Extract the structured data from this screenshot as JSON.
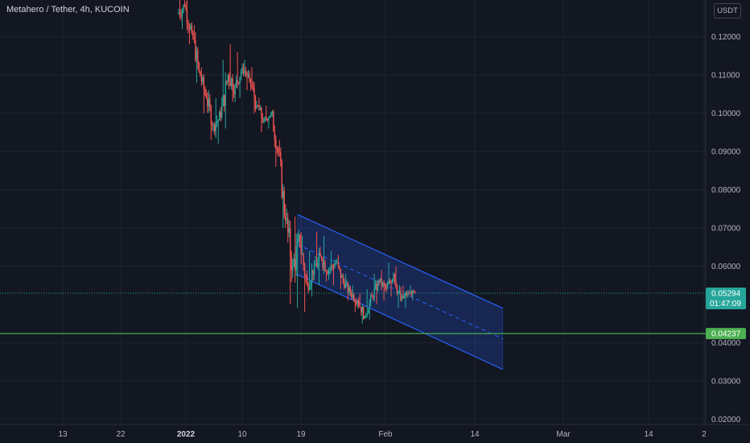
{
  "header": {
    "title": "Metahero / Tether, 4h, KUCOIN",
    "unit": "USDT"
  },
  "colors": {
    "background": "#131722",
    "grid": "#1f2330",
    "up_candle": "#26a69a",
    "down_candle": "#ef5350",
    "channel_fill": "#2962ff",
    "channel_line": "#2962ff",
    "support_line": "#4caf50",
    "current_price": "#26a69a"
  },
  "chart_data": {
    "type": "candlestick",
    "symbol": "Metahero / Tether",
    "interval": "4h",
    "exchange": "KUCOIN",
    "y_axis": {
      "ticks": [
        "0.12000",
        "0.11000",
        "0.10000",
        "0.09000",
        "0.08000",
        "0.07000",
        "0.06000",
        "0.04000",
        "0.03000",
        "0.02000"
      ],
      "range": [
        0.0186,
        0.1296
      ]
    },
    "x_axis": {
      "ticks": [
        {
          "label": "13",
          "bold": false
        },
        {
          "label": "22",
          "bold": false
        },
        {
          "label": "2022",
          "bold": true
        },
        {
          "label": "10",
          "bold": false
        },
        {
          "label": "19",
          "bold": false
        },
        {
          "label": "Feb",
          "bold": false
        },
        {
          "label": "14",
          "bold": false
        },
        {
          "label": "Mar",
          "bold": false
        },
        {
          "label": "14",
          "bold": false
        },
        {
          "label": "2",
          "bold": false
        }
      ]
    },
    "price_series": [
      {
        "d": 0,
        "o": 0.126,
        "h": 0.134,
        "l": 0.122,
        "c": 0.128
      },
      {
        "d": 1,
        "o": 0.128,
        "h": 0.131,
        "l": 0.118,
        "c": 0.121
      },
      {
        "d": 2,
        "o": 0.121,
        "h": 0.123,
        "l": 0.108,
        "c": 0.111
      },
      {
        "d": 3,
        "o": 0.111,
        "h": 0.112,
        "l": 0.1,
        "c": 0.104
      },
      {
        "d": 4,
        "o": 0.104,
        "h": 0.106,
        "l": 0.093,
        "c": 0.097
      },
      {
        "d": 5,
        "o": 0.097,
        "h": 0.104,
        "l": 0.092,
        "c": 0.099
      },
      {
        "d": 6,
        "o": 0.099,
        "h": 0.114,
        "l": 0.096,
        "c": 0.11
      },
      {
        "d": 7,
        "o": 0.11,
        "h": 0.118,
        "l": 0.103,
        "c": 0.107
      },
      {
        "d": 8,
        "o": 0.107,
        "h": 0.116,
        "l": 0.104,
        "c": 0.112
      },
      {
        "d": 9,
        "o": 0.112,
        "h": 0.114,
        "l": 0.106,
        "c": 0.109
      },
      {
        "d": 10,
        "o": 0.109,
        "h": 0.112,
        "l": 0.1,
        "c": 0.102
      },
      {
        "d": 11,
        "o": 0.102,
        "h": 0.104,
        "l": 0.095,
        "c": 0.098
      },
      {
        "d": 12,
        "o": 0.098,
        "h": 0.102,
        "l": 0.096,
        "c": 0.1
      },
      {
        "d": 13,
        "o": 0.1,
        "h": 0.101,
        "l": 0.086,
        "c": 0.09
      },
      {
        "d": 14,
        "o": 0.09,
        "h": 0.091,
        "l": 0.07,
        "c": 0.072
      },
      {
        "d": 15,
        "o": 0.072,
        "h": 0.074,
        "l": 0.05,
        "c": 0.06
      },
      {
        "d": 16,
        "o": 0.06,
        "h": 0.073,
        "l": 0.049,
        "c": 0.066
      },
      {
        "d": 17,
        "o": 0.066,
        "h": 0.068,
        "l": 0.048,
        "c": 0.055
      },
      {
        "d": 18,
        "o": 0.055,
        "h": 0.064,
        "l": 0.052,
        "c": 0.06
      },
      {
        "d": 19,
        "o": 0.06,
        "h": 0.069,
        "l": 0.055,
        "c": 0.062
      },
      {
        "d": 20,
        "o": 0.062,
        "h": 0.068,
        "l": 0.056,
        "c": 0.059
      },
      {
        "d": 21,
        "o": 0.059,
        "h": 0.064,
        "l": 0.055,
        "c": 0.061
      },
      {
        "d": 22,
        "o": 0.061,
        "h": 0.063,
        "l": 0.054,
        "c": 0.056
      },
      {
        "d": 23,
        "o": 0.056,
        "h": 0.058,
        "l": 0.051,
        "c": 0.053
      },
      {
        "d": 24,
        "o": 0.053,
        "h": 0.055,
        "l": 0.048,
        "c": 0.051
      },
      {
        "d": 25,
        "o": 0.051,
        "h": 0.053,
        "l": 0.045,
        "c": 0.047
      },
      {
        "d": 26,
        "o": 0.047,
        "h": 0.054,
        "l": 0.046,
        "c": 0.052
      },
      {
        "d": 27,
        "o": 0.052,
        "h": 0.058,
        "l": 0.05,
        "c": 0.056
      },
      {
        "d": 28,
        "o": 0.056,
        "h": 0.059,
        "l": 0.051,
        "c": 0.054
      },
      {
        "d": 29,
        "o": 0.054,
        "h": 0.061,
        "l": 0.052,
        "c": 0.058
      },
      {
        "d": 30,
        "o": 0.058,
        "h": 0.06,
        "l": 0.049,
        "c": 0.051
      },
      {
        "d": 31,
        "o": 0.051,
        "h": 0.055,
        "l": 0.049,
        "c": 0.053
      },
      {
        "d": 32,
        "o": 0.053,
        "h": 0.055,
        "l": 0.051,
        "c": 0.053
      }
    ],
    "current_price": {
      "value": "0.05294",
      "countdown": "01:47:09"
    },
    "support_level": {
      "value": "0.04237"
    },
    "channel": {
      "type": "descending parallel channel",
      "start_day": 16.5,
      "end_day": 45,
      "upper": [
        0.0735,
        0.049
      ],
      "lower": [
        0.0578,
        0.033
      ],
      "median_dashed": true
    }
  }
}
